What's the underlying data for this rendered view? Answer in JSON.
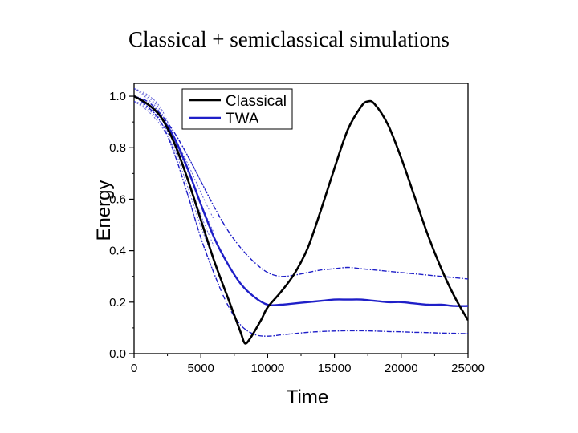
{
  "slide": {
    "title": "Classical + semiclassical simulations"
  },
  "chart_data": {
    "type": "line",
    "xlabel": "Time",
    "ylabel": "Energy",
    "xlim": [
      0,
      25000
    ],
    "ylim": [
      0,
      1.05
    ],
    "xticks": [
      "0",
      "5000",
      "10000",
      "15000",
      "20000",
      "25000"
    ],
    "yticks": [
      "0.0",
      "0.2",
      "0.4",
      "0.6",
      "0.8",
      "1.0"
    ],
    "legend": {
      "placement": "top-center",
      "entries": [
        "Classical",
        "TWA"
      ]
    },
    "colors": {
      "classical": "#000000",
      "twa": "#1f1fc8"
    },
    "series": [
      {
        "name": "Classical",
        "x": [
          0,
          1000,
          2000,
          3000,
          4000,
          5000,
          6000,
          7000,
          7500,
          8000,
          8300,
          8700,
          9500,
          10000,
          11000,
          12000,
          13000,
          14000,
          15000,
          16000,
          17000,
          17500,
          18000,
          19000,
          20000,
          21000,
          22000,
          23000,
          24000,
          25000
        ],
        "y": [
          1.0,
          0.97,
          0.92,
          0.82,
          0.68,
          0.52,
          0.36,
          0.22,
          0.15,
          0.08,
          0.04,
          0.06,
          0.13,
          0.18,
          0.24,
          0.31,
          0.41,
          0.56,
          0.72,
          0.87,
          0.96,
          0.98,
          0.97,
          0.89,
          0.76,
          0.61,
          0.46,
          0.33,
          0.22,
          0.13
        ]
      },
      {
        "name": "TWA",
        "x": [
          0,
          1000,
          2000,
          3000,
          4000,
          5000,
          6000,
          7000,
          8000,
          9000,
          10000,
          11000,
          12000,
          13000,
          14000,
          15000,
          16000,
          17000,
          18000,
          19000,
          20000,
          21000,
          22000,
          23000,
          24000,
          25000
        ],
        "y": [
          1.0,
          0.97,
          0.92,
          0.84,
          0.72,
          0.58,
          0.45,
          0.35,
          0.27,
          0.22,
          0.19,
          0.19,
          0.195,
          0.2,
          0.205,
          0.21,
          0.21,
          0.21,
          0.205,
          0.2,
          0.2,
          0.195,
          0.19,
          0.19,
          0.185,
          0.185
        ]
      },
      {
        "x": [
          0,
          1000,
          2000,
          3000,
          4000,
          5000,
          6000,
          7000,
          8000,
          9000,
          10000,
          11000,
          12000,
          13000,
          14000,
          15000,
          16000,
          17000,
          18000,
          19000,
          20000,
          21000,
          22000,
          23000,
          24000,
          25000
        ],
        "y": [
          1.0,
          0.98,
          0.93,
          0.86,
          0.77,
          0.67,
          0.57,
          0.48,
          0.41,
          0.355,
          0.315,
          0.3,
          0.305,
          0.315,
          0.325,
          0.33,
          0.335,
          0.33,
          0.325,
          0.32,
          0.315,
          0.31,
          0.305,
          0.3,
          0.295,
          0.29
        ]
      },
      {
        "x": [
          0,
          1000,
          2000,
          3000,
          4000,
          5000,
          6000,
          7000,
          8000,
          9000,
          10000,
          11000,
          12000,
          13000,
          14000,
          15000,
          16000,
          17000,
          18000,
          19000,
          20000,
          21000,
          22000,
          23000,
          24000,
          25000
        ],
        "y": [
          1.0,
          0.96,
          0.9,
          0.78,
          0.62,
          0.45,
          0.31,
          0.19,
          0.11,
          0.075,
          0.068,
          0.073,
          0.078,
          0.083,
          0.086,
          0.088,
          0.089,
          0.089,
          0.088,
          0.086,
          0.085,
          0.083,
          0.082,
          0.08,
          0.079,
          0.078
        ]
      }
    ]
  }
}
